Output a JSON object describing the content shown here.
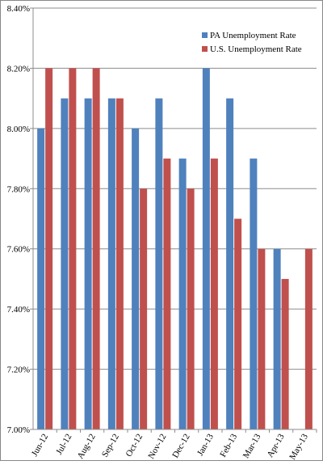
{
  "chart_data": {
    "type": "bar",
    "categories": [
      "Jun-12",
      "Jul-12",
      "Aug-12",
      "Sep-12",
      "Oct-12",
      "Nov-12",
      "Dec-12",
      "Jan-13",
      "Feb-13",
      "Mar-13",
      "Apr-13",
      "May-13"
    ],
    "series": [
      {
        "name": "PA Unemployment Rate",
        "color": "#4f81bd",
        "values": [
          8.0,
          8.1,
          8.1,
          8.1,
          8.0,
          8.1,
          7.9,
          8.2,
          8.1,
          7.9,
          7.6,
          null
        ]
      },
      {
        "name": "U.S. Unemployment Rate",
        "color": "#c0504d",
        "values": [
          8.2,
          8.2,
          8.2,
          8.1,
          7.8,
          7.9,
          7.8,
          7.9,
          7.7,
          7.6,
          7.5,
          7.6
        ]
      }
    ],
    "ylim": [
      7.0,
      8.4
    ],
    "yticks": [
      "7.00%",
      "7.20%",
      "7.40%",
      "7.60%",
      "7.80%",
      "8.00%",
      "8.20%",
      "8.40%"
    ],
    "ytick_values": [
      7.0,
      7.2,
      7.4,
      7.6,
      7.8,
      8.0,
      8.2,
      8.4
    ],
    "grid": "horizontal",
    "legend_position": "top-right",
    "title": "",
    "xlabel": "",
    "ylabel": ""
  }
}
